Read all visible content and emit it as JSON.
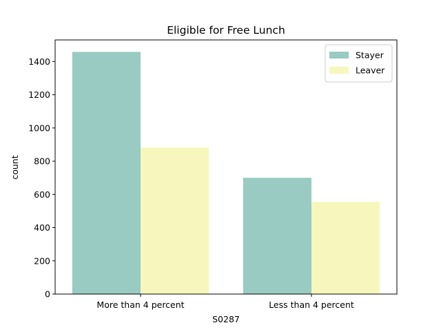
{
  "chart_data": {
    "type": "bar",
    "title": "Eligible for Free Lunch",
    "xlabel": "S0287",
    "ylabel": "count",
    "categories": [
      "More than 4 percent",
      "Less than 4 percent"
    ],
    "series": [
      {
        "name": "Stayer",
        "values": [
          1458,
          700
        ],
        "color": "#99cbc2"
      },
      {
        "name": "Leaver",
        "values": [
          882,
          555
        ],
        "color": "#f7f7bd"
      }
    ],
    "ylim": [
      0,
      1530
    ],
    "yticks": [
      0,
      200,
      400,
      600,
      800,
      1000,
      1200,
      1400
    ],
    "grid": false,
    "legend": "top-right"
  }
}
